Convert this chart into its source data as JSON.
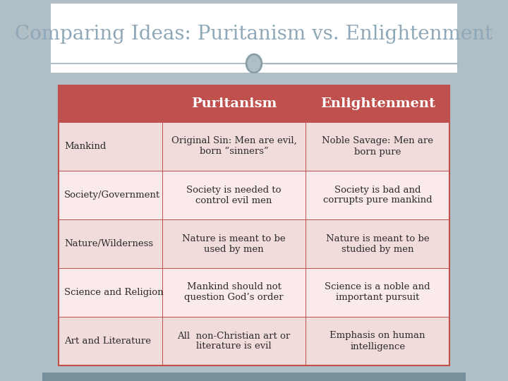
{
  "title": "Comparing Ideas: Puritanism vs. Enlightenment",
  "title_color": "#8fa8b8",
  "title_fontsize": 20,
  "bg_outer": "#b0bec5",
  "bg_title_area": "#ffffff",
  "header_color": "#c0504d",
  "header_text_color": "#ffffff",
  "row_colors": [
    "#f2dcdb",
    "#faeae9",
    "#f2dcdb",
    "#faeae9",
    "#f2dcdb"
  ],
  "border_color": "#c0504d",
  "text_color": "#2c2c2c",
  "categories": [
    "Mankind",
    "Society/Government",
    "Nature/Wilderness",
    "Science and Religion",
    "Art and Literature"
  ],
  "puritanism": [
    "Original Sin: Men are evil,\nborn “sinners”",
    "Society is needed to\ncontrol evil men",
    "Nature is meant to be\nused by men",
    "Mankind should not\nquestion God’s order",
    "All  non-Christian art or\nliterature is evil"
  ],
  "enlightenment": [
    "Noble Savage: Men are\nborn pure",
    "Society is bad and\ncorrupts pure mankind",
    "Nature is meant to be\nstudied by men",
    "Science is a noble and\nimportant pursuit",
    "Emphasis on human\nintelligence"
  ],
  "col_headers": [
    "Puritanism",
    "Enlightenment"
  ],
  "circle_fill": "#b0bec5",
  "circle_edge": "#8a9da8",
  "bottom_bar_color": "#78909c",
  "line_color": "#9fb0ba"
}
